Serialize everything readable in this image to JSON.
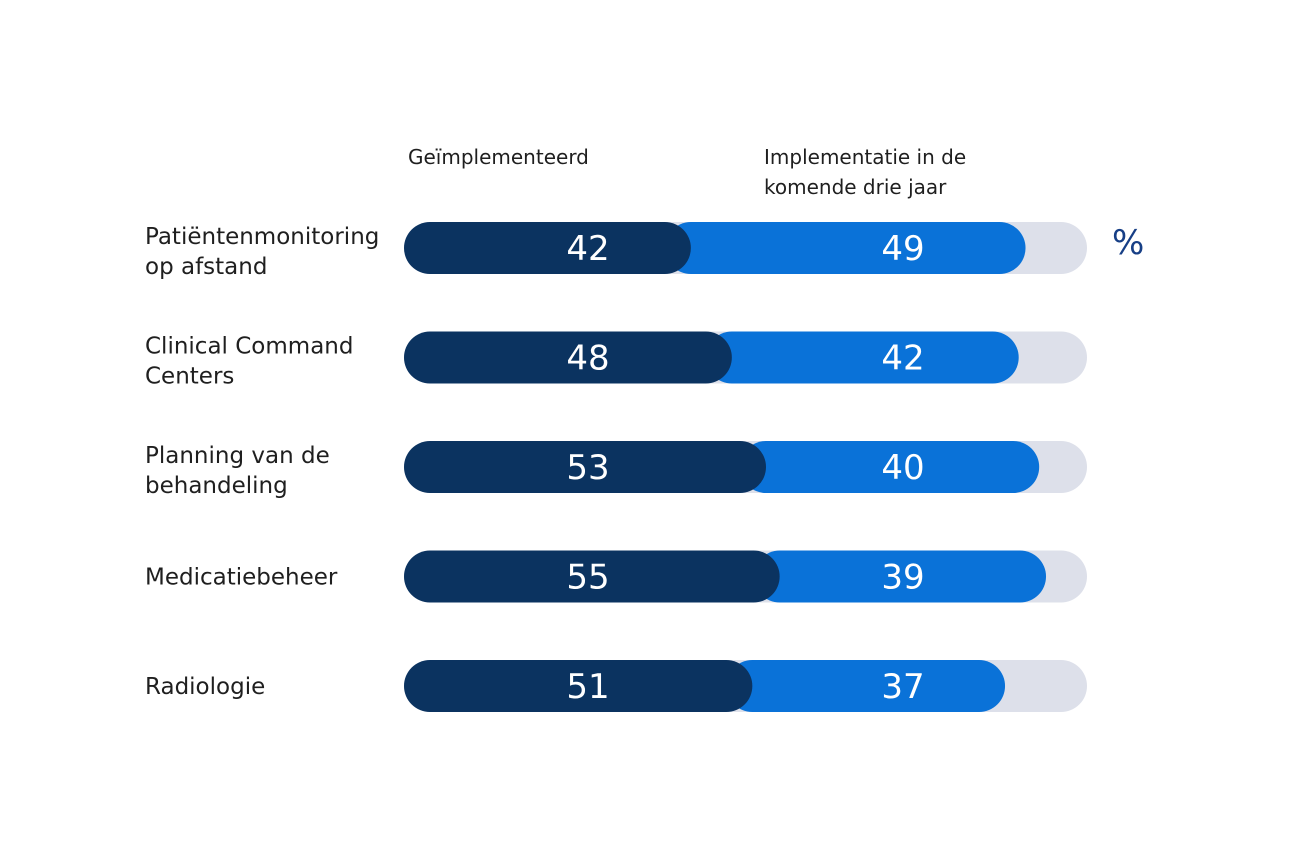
{
  "chart_data": {
    "type": "bar",
    "stacked": true,
    "orientation": "horizontal",
    "unit": "%",
    "xlim": [
      0,
      100
    ],
    "categories": [
      [
        "Patiëntenmonitoring",
        "op afstand"
      ],
      [
        "Clinical Command",
        "Centers"
      ],
      [
        "Planning van de",
        "behandeling"
      ],
      [
        "Medicatiebeheer"
      ],
      [
        "Radiologie"
      ]
    ],
    "series": [
      {
        "name": [
          "Geïmplementeerd"
        ],
        "values": [
          42,
          48,
          53,
          55,
          51
        ],
        "color": "#0b3360"
      },
      {
        "name": [
          "Implementatie in de",
          "komende drie jaar"
        ],
        "values": [
          49,
          42,
          40,
          39,
          37
        ],
        "color": "#0a72d8"
      }
    ],
    "track_color": "#dde0ea",
    "unit_color": "#173f86"
  }
}
